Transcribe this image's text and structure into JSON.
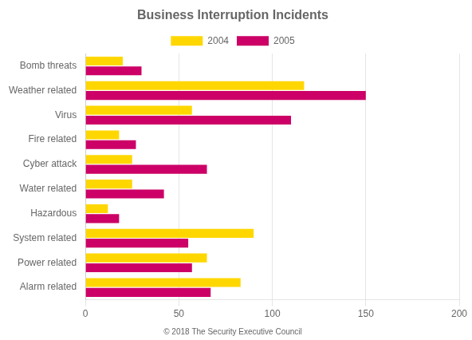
{
  "chart_data": {
    "type": "bar",
    "title": "Business Interruption Incidents",
    "annotations": [
      "© 2018 The Security Executive Council"
    ],
    "orientation": "horizontal",
    "categories": [
      "Alarm related",
      "Power related",
      "System related",
      "Hazardous",
      "Water related",
      "Cyber attack",
      "Fire related",
      "Virus",
      "Weather related",
      "Bomb threats"
    ],
    "series": [
      {
        "name": "2004",
        "color": "#FFD700",
        "values": [
          83,
          65,
          90,
          12,
          25,
          25,
          18,
          57,
          117,
          20
        ]
      },
      {
        "name": "2005",
        "color": "#CC0066",
        "values": [
          67,
          57,
          55,
          18,
          42,
          65,
          27,
          110,
          150,
          30
        ]
      }
    ],
    "xlim": [
      0,
      200
    ],
    "xticks": [
      0,
      50,
      100,
      150,
      200
    ],
    "grid": "x",
    "legend": "top"
  }
}
